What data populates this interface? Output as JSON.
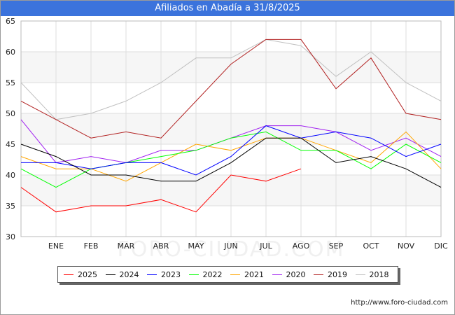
{
  "chart_data": {
    "type": "line",
    "title": "Afiliados en Abadía a 31/8/2025",
    "watermark": "FORO-CIUDAD.COM",
    "source": "http://www.foro-ciudad.com",
    "categories": [
      "",
      "ENE",
      "FEB",
      "MAR",
      "ABR",
      "MAY",
      "JUN",
      "JUL",
      "AGO",
      "SEP",
      "OCT",
      "NOV",
      "DIC"
    ],
    "y_ticks": [
      30,
      35,
      40,
      45,
      50,
      55,
      60,
      65
    ],
    "ylim": [
      30,
      65
    ],
    "grid": true,
    "legend_position": "bottom",
    "series": [
      {
        "name": "2025",
        "color": "#ff0000",
        "values": [
          38,
          34,
          35,
          35,
          36,
          34,
          40,
          39,
          41,
          null,
          null,
          null,
          null
        ]
      },
      {
        "name": "2024",
        "color": "#000000",
        "values": [
          45,
          43,
          40,
          40,
          39,
          39,
          42,
          46,
          46,
          42,
          43,
          41,
          38
        ]
      },
      {
        "name": "2023",
        "color": "#0000ff",
        "values": [
          42,
          42,
          41,
          42,
          42,
          40,
          43,
          48,
          46,
          47,
          46,
          43,
          45
        ]
      },
      {
        "name": "2022",
        "color": "#00ff00",
        "values": [
          41,
          38,
          41,
          42,
          43,
          44,
          46,
          47,
          44,
          44,
          41,
          45,
          42
        ]
      },
      {
        "name": "2021",
        "color": "#ffa500",
        "values": [
          43,
          41,
          41,
          39,
          42,
          45,
          44,
          46,
          46,
          44,
          42,
          47,
          41
        ]
      },
      {
        "name": "2020",
        "color": "#a020f0",
        "values": [
          49,
          42,
          43,
          42,
          44,
          44,
          46,
          48,
          48,
          47,
          44,
          46,
          43
        ]
      },
      {
        "name": "2019",
        "color": "#b22222",
        "values": [
          52,
          49,
          46,
          47,
          46,
          52,
          58,
          62,
          62,
          54,
          59,
          50,
          49
        ]
      },
      {
        "name": "2018",
        "color": "#c0c0c0",
        "values": [
          55,
          49,
          50,
          52,
          55,
          59,
          59,
          62,
          61,
          56,
          60,
          55,
          52
        ]
      }
    ]
  }
}
